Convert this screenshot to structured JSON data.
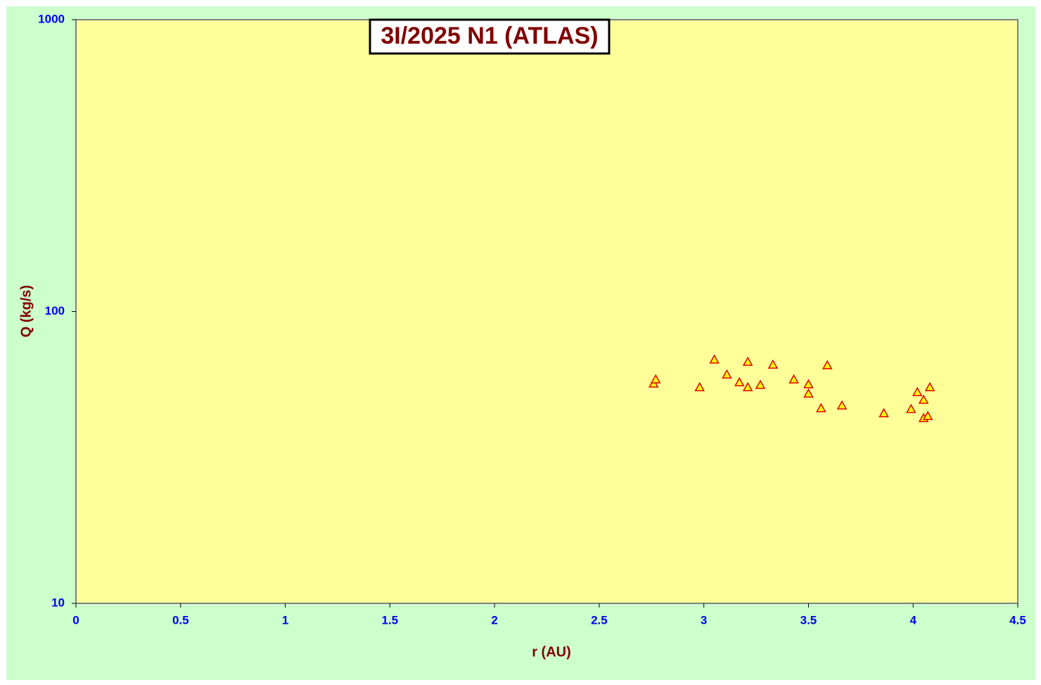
{
  "chart_data": {
    "type": "scatter",
    "title": "3I/2025 N1 (ATLAS)",
    "x_label": "r (AU)",
    "y_label": "Q (kg/s)",
    "log_y": true,
    "xlim": [
      0,
      4.5
    ],
    "xticks": [
      0,
      0.5,
      1,
      1.5,
      2,
      2.5,
      3,
      3.5,
      4,
      4.5
    ],
    "ylim": [
      10,
      1000
    ],
    "yticks": [
      10,
      100,
      1000
    ],
    "series": [
      {
        "color": "#ffff00",
        "edge_color": "#dd0000",
        "marker": "triangle",
        "x": [
          2.76,
          2.77,
          2.98,
          3.05,
          3.11,
          3.17,
          3.21,
          3.21,
          3.27,
          3.33,
          3.43,
          3.5,
          3.5,
          3.56,
          3.59,
          3.66,
          3.86,
          3.99,
          4.02,
          4.05,
          4.05,
          4.07,
          4.08
        ],
        "values": [
          56.6,
          58.5,
          55.0,
          68.4,
          60.8,
          57.2,
          67.2,
          55.0,
          56.0,
          65.7,
          58.5,
          56.3,
          52.3,
          46.6,
          65.4,
          47.6,
          44.8,
          46.3,
          52.9,
          49.8,
          43.1,
          43.8,
          55.0
        ]
      }
    ]
  }
}
